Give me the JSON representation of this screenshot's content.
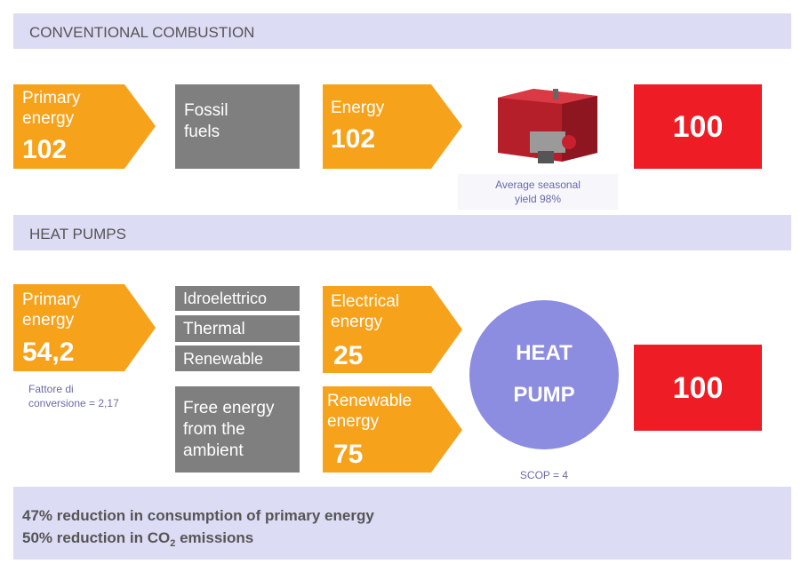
{
  "sections": [
    {
      "title": "CONVENTIONAL COMBUSTION"
    },
    {
      "title": "HEAT PUMPS"
    }
  ],
  "conventional": {
    "primary": {
      "label": [
        "Primary",
        "energy"
      ],
      "value": "102"
    },
    "source": [
      "Fossil",
      "fuels"
    ],
    "energy": {
      "label": [
        "Energy"
      ],
      "value": "102"
    },
    "caption": [
      "Average seasonal",
      "yield 98%"
    ],
    "output": "100"
  },
  "heat_pumps": {
    "primary": {
      "label": [
        "Primary",
        "energy"
      ],
      "value": "54,2"
    },
    "primary_caption": [
      "Fattore di",
      "conversione = 2,17"
    ],
    "sources": [
      "Idroelettrico",
      "Thermal",
      "Renewable"
    ],
    "ambient": [
      "Free energy",
      "from the",
      "ambient"
    ],
    "electrical": {
      "label": [
        "Electrical",
        "energy"
      ],
      "value": "25"
    },
    "renewable": {
      "label": [
        "Renewable",
        "energy"
      ],
      "value": "75"
    },
    "pump": [
      "HEAT",
      "PUMP"
    ],
    "pump_caption": "SCOP = 4",
    "output": "100"
  },
  "footer": {
    "line1": "47% reduction in consumption of primary energy",
    "line2": {
      "before": "50% reduction in CO",
      "sub": "2",
      "after": " emissions"
    }
  }
}
